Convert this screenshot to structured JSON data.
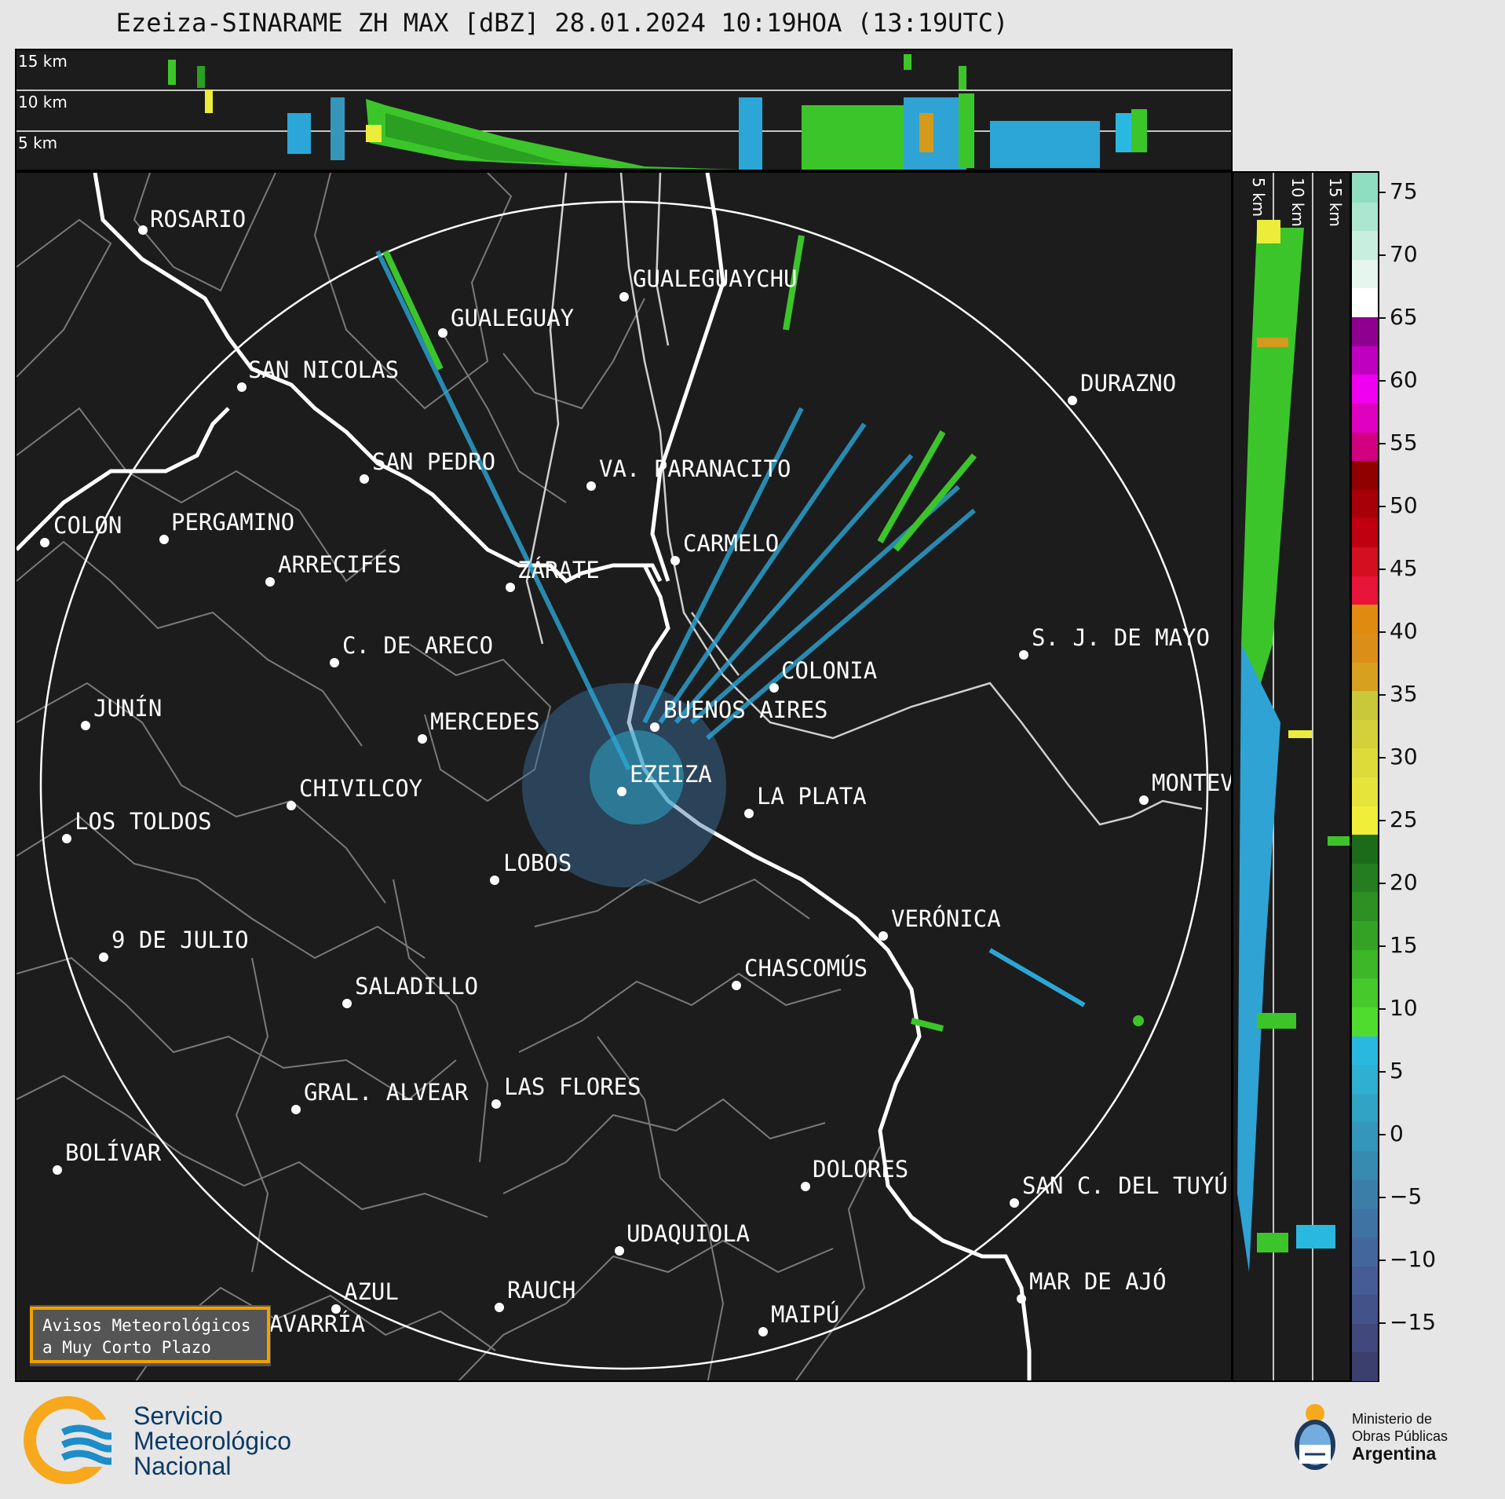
{
  "title": "Ezeiza-SINARAME ZH MAX [dBZ] 28.01.2024 10:19HOA (13:19UTC)",
  "top_panel": {
    "height_labels": [
      "15 km",
      "10 km",
      "5 km"
    ]
  },
  "side_panel": {
    "height_labels": [
      "5 km",
      "10 km",
      "15 km"
    ]
  },
  "cities": [
    {
      "name": "ROSARIO"
    },
    {
      "name": "GUALEGUAYCHU"
    },
    {
      "name": "GUALEGUAY"
    },
    {
      "name": "SAN NICOLAS"
    },
    {
      "name": "DURAZNO"
    },
    {
      "name": "SAN PEDRO"
    },
    {
      "name": "VA. PARANACITO"
    },
    {
      "name": "COLON"
    },
    {
      "name": "PERGAMINO"
    },
    {
      "name": "CARMELO"
    },
    {
      "name": "ARRECIFES"
    },
    {
      "name": "ZÁRATE"
    },
    {
      "name": "S. J. DE MAYO"
    },
    {
      "name": "C. DE ARECO"
    },
    {
      "name": "COLONIA"
    },
    {
      "name": "JUNÍN"
    },
    {
      "name": "BUENOS AIRES"
    },
    {
      "name": "MERCEDES"
    },
    {
      "name": "EZEIZA"
    },
    {
      "name": "MONTEVIDEO"
    },
    {
      "name": "CHIVILCOY"
    },
    {
      "name": "LA PLATA"
    },
    {
      "name": "LOS TOLDOS"
    },
    {
      "name": "LOBOS"
    },
    {
      "name": "VERÓNICA"
    },
    {
      "name": "9 DE JULIO"
    },
    {
      "name": "CHASCOMÚS"
    },
    {
      "name": "SALADILLO"
    },
    {
      "name": "GRAL. ALVEAR"
    },
    {
      "name": "LAS FLORES"
    },
    {
      "name": "BOLÍVAR"
    },
    {
      "name": "DOLORES"
    },
    {
      "name": "SAN C. DEL TUYÚ"
    },
    {
      "name": "UDAQUIOLA"
    },
    {
      "name": "MAR DE AJÓ"
    },
    {
      "name": "AZUL"
    },
    {
      "name": "RAUCH"
    },
    {
      "name": "MAIPÚ"
    },
    {
      "name": "OLAVARRÍA"
    }
  ],
  "colorbar": {
    "unit": "dBZ",
    "ticks": [
      "75",
      "70",
      "65",
      "60",
      "55",
      "50",
      "45",
      "40",
      "35",
      "30",
      "25",
      "20",
      "15",
      "10",
      "5",
      "0",
      "−5",
      "−10",
      "−15"
    ],
    "colors": [
      "#3b3f6e",
      "#40487c",
      "#44528a",
      "#465c96",
      "#43679d",
      "#3f73a3",
      "#3b7fa9",
      "#378bb0",
      "#3497ba",
      "#31a3c4",
      "#2eb0d2",
      "#29b9e0",
      "#4fdc2f",
      "#46c92b",
      "#3db628",
      "#34a325",
      "#2c9022",
      "#247d1f",
      "#1c6b1b",
      "#f0ee38",
      "#e6e43a",
      "#dcdb3a",
      "#d2d13a",
      "#c8c83a",
      "#d7a01e",
      "#db8f18",
      "#e08a10",
      "#e8143a",
      "#d41020",
      "#c00010",
      "#a80008",
      "#900000",
      "#d00080",
      "#e000c0",
      "#f000f0",
      "#c000c0",
      "#900090",
      "#ffffff",
      "#e4f6ee",
      "#c8eedf",
      "#ace6d0",
      "#90dec1"
    ]
  },
  "avisos": {
    "line1": "Avisos Meteorológicos",
    "line2": "a Muy Corto Plazo"
  },
  "smn": {
    "line1": "Servicio",
    "line2": "Meteorológico",
    "line3": "Nacional"
  },
  "ministry": {
    "line1": "Ministerio de",
    "line2": "Obras Públicas",
    "line3": "Argentina"
  }
}
